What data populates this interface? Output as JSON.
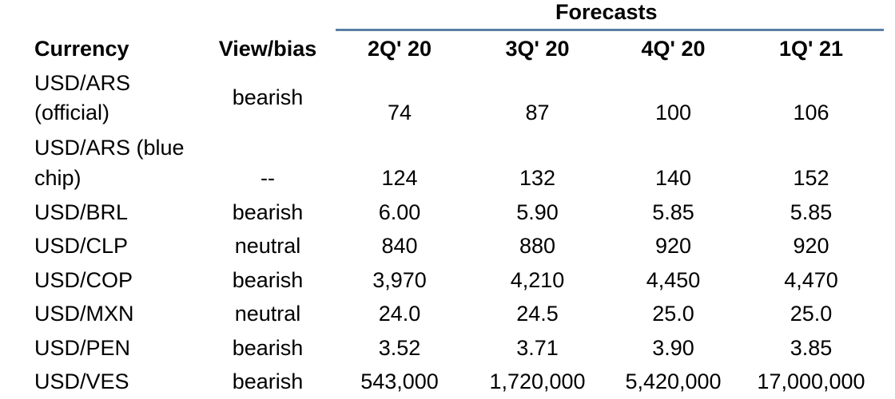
{
  "table": {
    "group_header": "Forecasts",
    "headers": [
      "Currency",
      "View/bias",
      "2Q' 20",
      "3Q' 20",
      "4Q' 20",
      "1Q' 21"
    ],
    "rows": [
      {
        "currency_line1": "USD/ARS",
        "currency_line2": "(official)",
        "bias": "bearish",
        "values": [
          "74",
          "87",
          "100",
          "106"
        ]
      },
      {
        "currency_line1": "USD/ARS (blue",
        "currency_line2": "chip)",
        "bias": "--",
        "values": [
          "124",
          "132",
          "140",
          "152"
        ]
      },
      {
        "currency": "USD/BRL",
        "bias": "bearish",
        "values": [
          "6.00",
          "5.90",
          "5.85",
          "5.85"
        ]
      },
      {
        "currency": "USD/CLP",
        "bias": "neutral",
        "values": [
          "840",
          "880",
          "920",
          "920"
        ]
      },
      {
        "currency": "USD/COP",
        "bias": "bearish",
        "values": [
          "3,970",
          "4,210",
          "4,450",
          "4,470"
        ]
      },
      {
        "currency": "USD/MXN",
        "bias": "neutral",
        "values": [
          "24.0",
          "24.5",
          "25.0",
          "25.0"
        ]
      },
      {
        "currency": "USD/PEN",
        "bias": "bearish",
        "values": [
          "3.52",
          "3.71",
          "3.90",
          "3.85"
        ]
      },
      {
        "currency": "USD/VES",
        "bias": "bearish",
        "values": [
          "543,000",
          "1,720,000",
          "5,420,000",
          "17,000,000"
        ]
      }
    ]
  }
}
